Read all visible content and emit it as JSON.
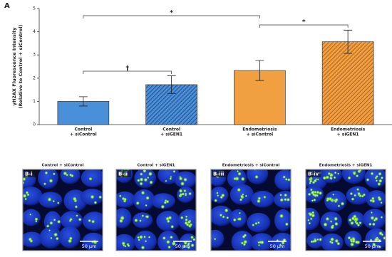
{
  "chart_data": {
    "type": "bar",
    "panel_label": "A",
    "y_label": [
      "γH2AX Fluorescence Intensity",
      "(Relative to Control + siControl)"
    ],
    "categories": [
      [
        "Control",
        "+ siControl"
      ],
      [
        "Control",
        "+ siGEN1"
      ],
      [
        "Endometriosis",
        "+ siControl"
      ],
      [
        "Endometriosis",
        "+ siGEN1"
      ]
    ],
    "values": [
      1.0,
      1.72,
      2.33,
      3.57
    ],
    "errors": [
      0.2,
      0.38,
      0.43,
      0.5
    ],
    "colors": [
      "#4a90d9",
      "#4a90d9",
      "#f0a040",
      "#f0a040"
    ],
    "hatched": [
      false,
      true,
      false,
      true
    ],
    "ylim": [
      0,
      5
    ],
    "yticks": [
      0,
      1,
      2,
      3,
      4,
      5
    ],
    "annotations": [
      {
        "text": "*",
        "between": [
          0,
          2
        ]
      },
      {
        "text": "*",
        "between": [
          2,
          3
        ]
      },
      {
        "text": "†",
        "between": [
          0,
          1
        ]
      }
    ]
  },
  "panel_b": {
    "images": [
      {
        "label": "B-i",
        "title": "Control + siControl",
        "scale_bar": "50 μm"
      },
      {
        "label": "B-ii",
        "title": "Control + siGEN1",
        "scale_bar": "50 μm"
      },
      {
        "label": "B-iii",
        "title": "Endometriosis + siControl",
        "scale_bar": "50 μm"
      },
      {
        "label": "B-iv",
        "title": "Endometriosis + siGEN1",
        "scale_bar": "50 μm"
      }
    ]
  }
}
